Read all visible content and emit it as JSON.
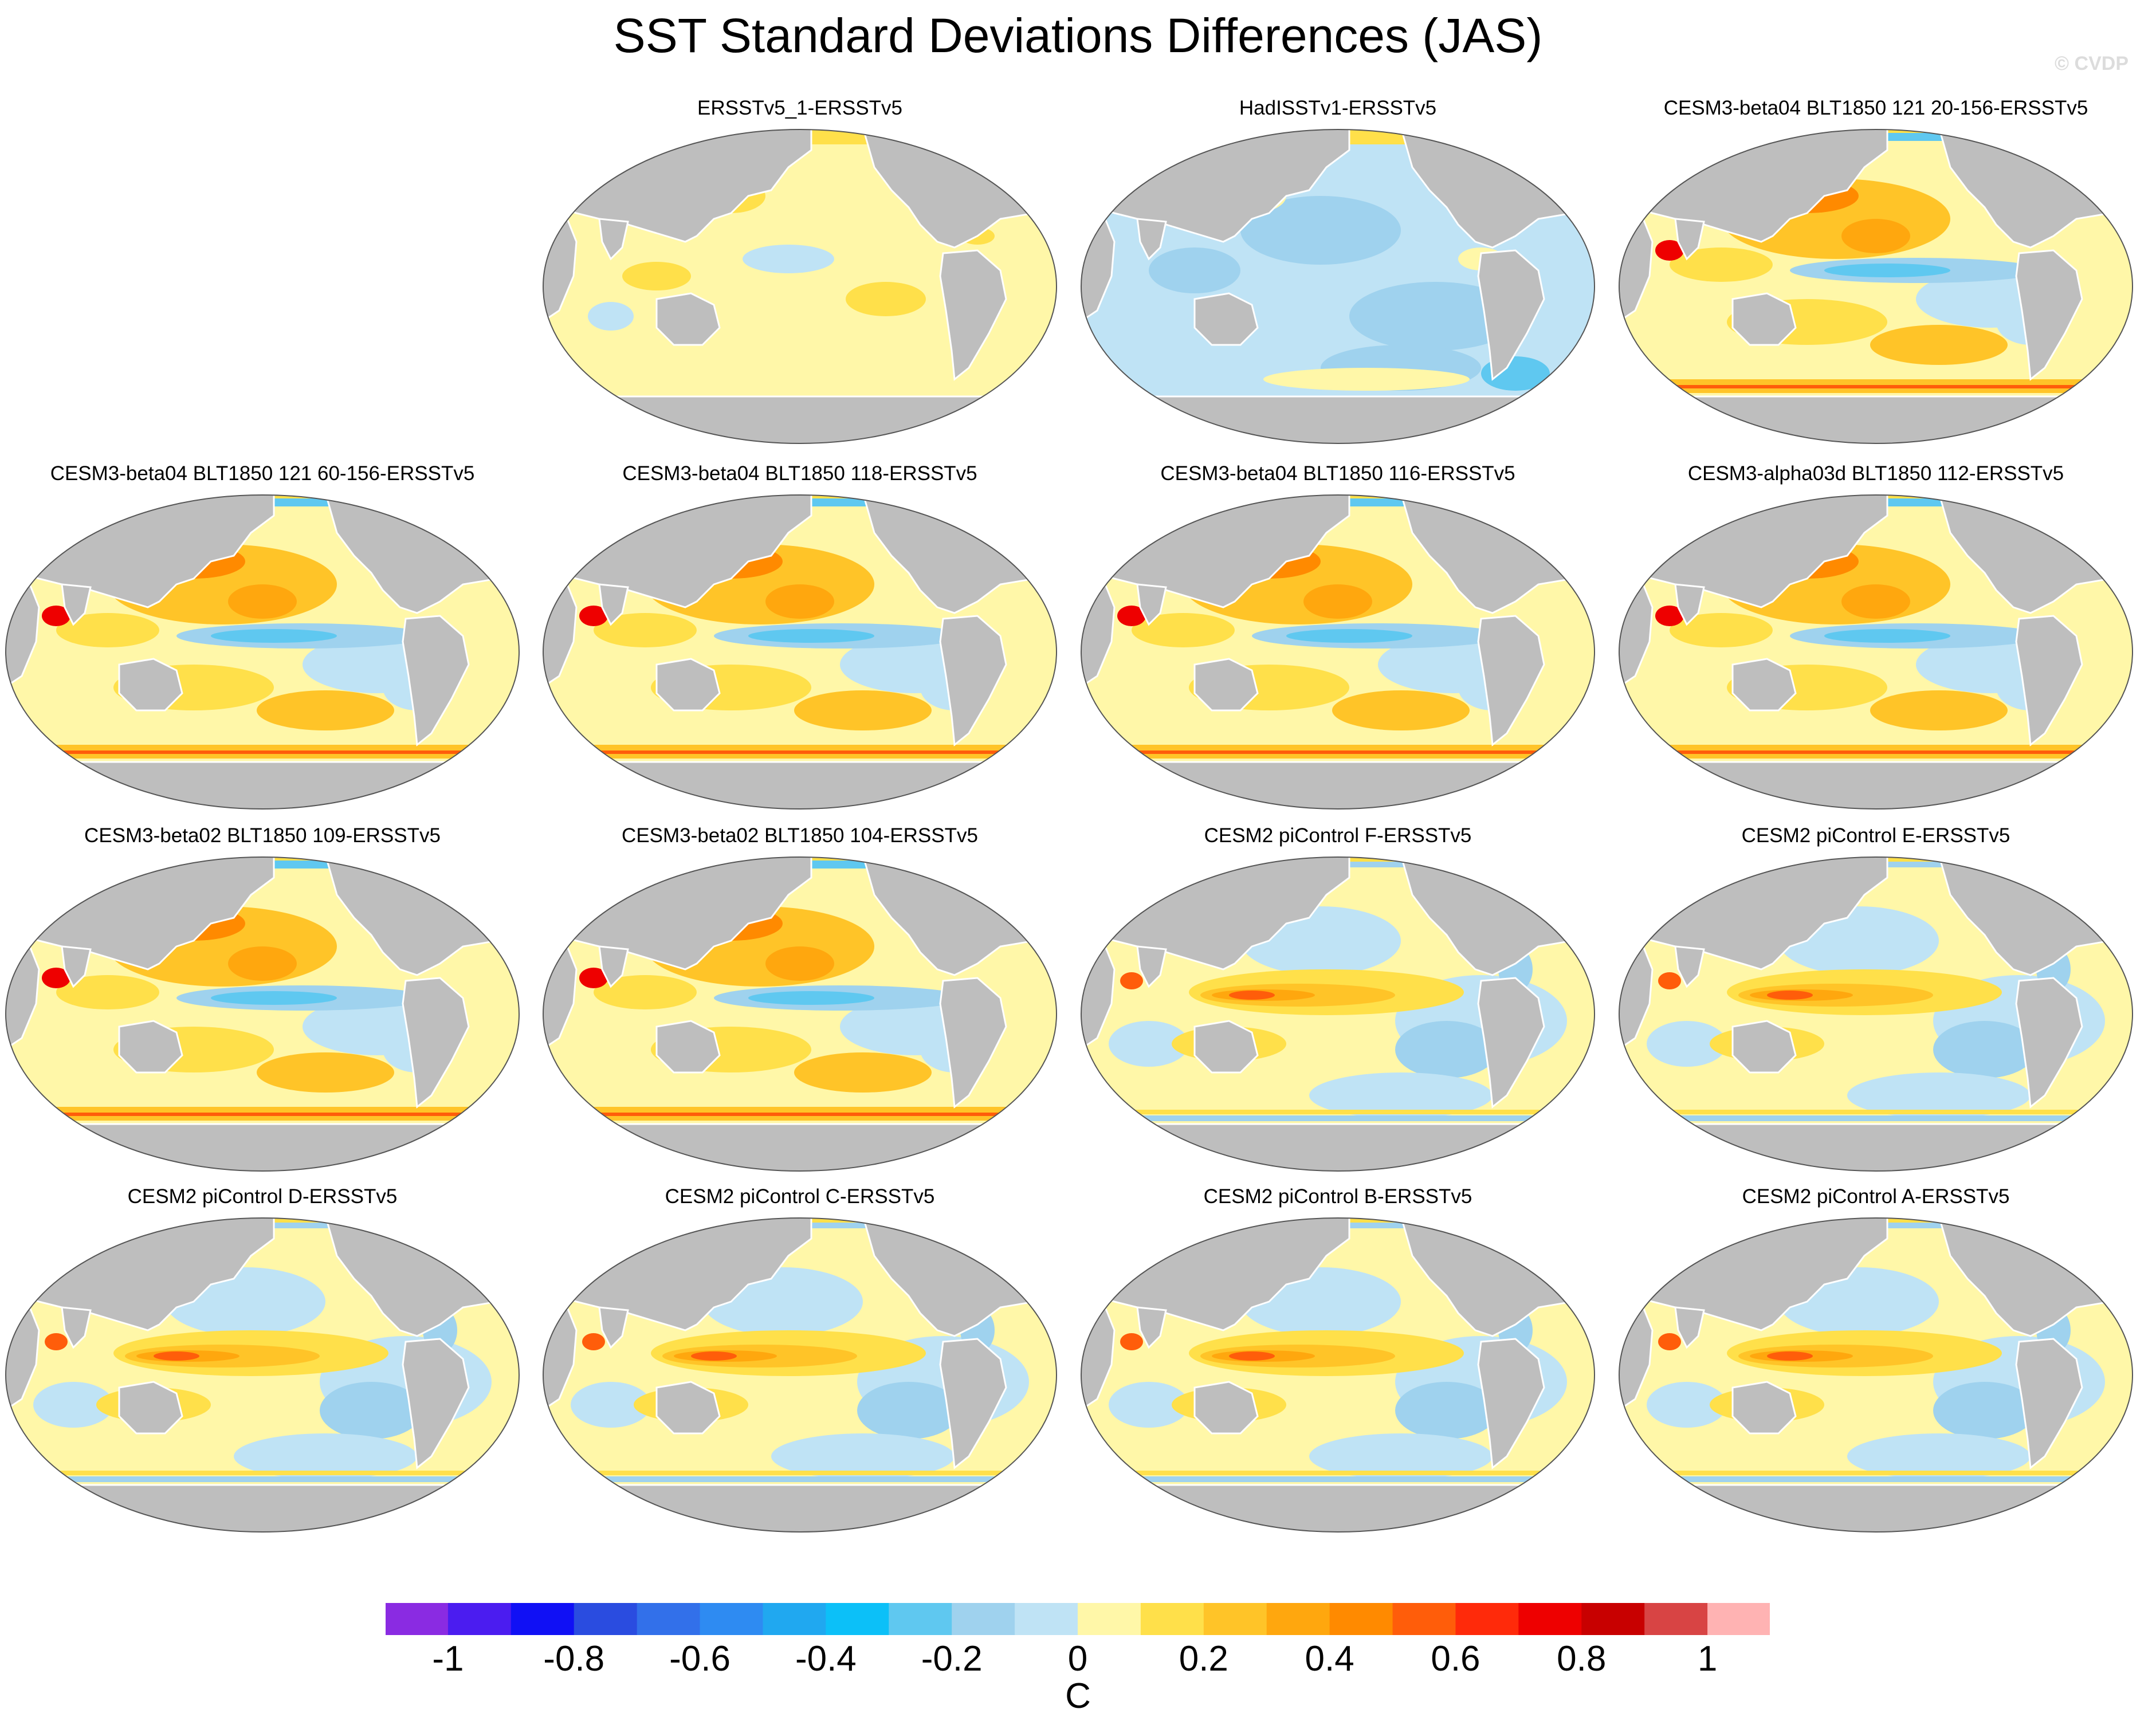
{
  "title": "SST Standard Deviations Differences (JAS)",
  "watermark": "© CVDP",
  "colors": {
    "land": "#bebebe",
    "coast": "#ffffff",
    "scale": [
      "#8a2be2",
      "#4b1cf0",
      "#1010f5",
      "#2a4ce0",
      "#3270ea",
      "#2e8bf2",
      "#20a8f0",
      "#0cc0f8",
      "#5fc8f0",
      "#9fd2ee",
      "#bfe3f5",
      "#fff7a8",
      "#ffe04a",
      "#ffc428",
      "#ffa70e",
      "#ff8a00",
      "#ff5d0a",
      "#ff2a0a",
      "#ee0000",
      "#c80000",
      "#d84444",
      "#ffb3b3"
    ]
  },
  "panels": [
    {
      "title": "",
      "empty": true
    },
    {
      "title": "ERSSTv5_1-ERSSTv5",
      "pattern": "flat"
    },
    {
      "title": "HadISSTv1-ERSSTv5",
      "pattern": "had"
    },
    {
      "title": "CESM3-beta04 BLT1850 121 20-156-ERSSTv5",
      "pattern": "cesm3"
    },
    {
      "title": "CESM3-beta04 BLT1850 121 60-156-ERSSTv5",
      "pattern": "cesm3"
    },
    {
      "title": "CESM3-beta04 BLT1850 118-ERSSTv5",
      "pattern": "cesm3"
    },
    {
      "title": "CESM3-beta04 BLT1850 116-ERSSTv5",
      "pattern": "cesm3"
    },
    {
      "title": "CESM3-alpha03d BLT1850 112-ERSSTv5",
      "pattern": "cesm3"
    },
    {
      "title": "CESM3-beta02 BLT1850 109-ERSSTv5",
      "pattern": "cesm3"
    },
    {
      "title": "CESM3-beta02 BLT1850 104-ERSSTv5",
      "pattern": "cesm3"
    },
    {
      "title": "CESM2 piControl F-ERSSTv5",
      "pattern": "cesm2"
    },
    {
      "title": "CESM2 piControl E-ERSSTv5",
      "pattern": "cesm2"
    },
    {
      "title": "CESM2 piControl D-ERSSTv5",
      "pattern": "cesm2"
    },
    {
      "title": "CESM2 piControl C-ERSSTv5",
      "pattern": "cesm2"
    },
    {
      "title": "CESM2 piControl B-ERSSTv5",
      "pattern": "cesm2"
    },
    {
      "title": "CESM2 piControl A-ERSSTv5",
      "pattern": "cesm2"
    }
  ],
  "colorbar": {
    "ticks": [
      "-1",
      "-0.8",
      "-0.6",
      "-0.4",
      "-0.2",
      "0",
      "0.2",
      "0.4",
      "0.6",
      "0.8",
      "1"
    ],
    "unit": "C"
  }
}
